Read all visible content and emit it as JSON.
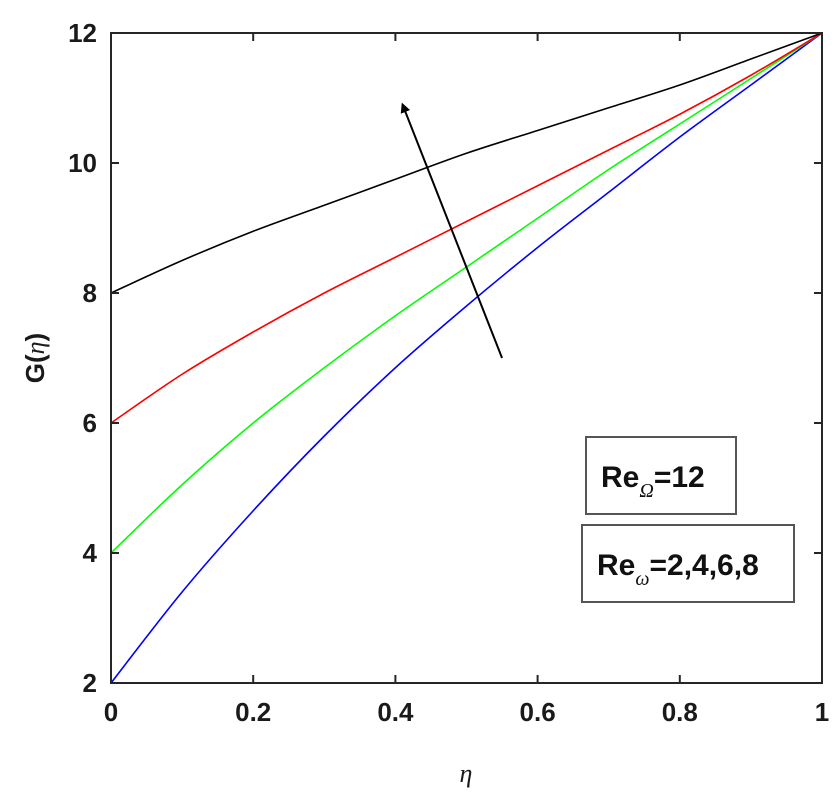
{
  "chart_data": {
    "type": "line",
    "xlabel": "η",
    "ylabel_prefix": "G(",
    "ylabel_var": "η",
    "ylabel_suffix": ")",
    "xlim": [
      0,
      1
    ],
    "ylim": [
      2,
      12
    ],
    "x_ticks": [
      0,
      0.2,
      0.4,
      0.6,
      0.8,
      1
    ],
    "x_tick_labels": [
      "0",
      "0.2",
      "0.4",
      "0.6",
      "0.8",
      "1"
    ],
    "y_ticks": [
      2,
      4,
      6,
      8,
      10,
      12
    ],
    "y_tick_labels": [
      "2",
      "4",
      "6",
      "8",
      "10",
      "12"
    ],
    "grid": false,
    "series": [
      {
        "color": "#0000ff",
        "x": [
          0,
          0.1,
          0.2,
          0.3,
          0.4,
          0.5,
          0.6,
          0.7,
          0.8,
          0.9,
          1.0
        ],
        "y": [
          2.0,
          3.4,
          4.65,
          5.8,
          6.85,
          7.8,
          8.7,
          9.55,
          10.4,
          11.2,
          12.0
        ]
      },
      {
        "color": "#00ff00",
        "x": [
          0,
          0.1,
          0.2,
          0.3,
          0.4,
          0.5,
          0.6,
          0.7,
          0.8,
          0.9,
          1.0
        ],
        "y": [
          4.0,
          5.05,
          6.0,
          6.85,
          7.65,
          8.4,
          9.15,
          9.9,
          10.6,
          11.3,
          12.0
        ]
      },
      {
        "color": "#ff0000",
        "x": [
          0,
          0.1,
          0.2,
          0.3,
          0.4,
          0.5,
          0.6,
          0.7,
          0.8,
          0.9,
          1.0
        ],
        "y": [
          6.0,
          6.75,
          7.4,
          8.0,
          8.55,
          9.1,
          9.65,
          10.2,
          10.75,
          11.35,
          12.0
        ]
      },
      {
        "color": "#000000",
        "x": [
          0,
          0.1,
          0.2,
          0.3,
          0.4,
          0.5,
          0.6,
          0.7,
          0.8,
          0.9,
          1.0
        ],
        "y": [
          8.0,
          8.5,
          8.95,
          9.35,
          9.75,
          10.15,
          10.5,
          10.85,
          11.2,
          11.6,
          12.0
        ]
      }
    ],
    "arrow": {
      "from": [
        0.55,
        7.0
      ],
      "to": [
        0.41,
        10.9
      ]
    },
    "annotations": [
      {
        "prefix": "Re",
        "sub": "Ω",
        "suffix": "=12"
      },
      {
        "prefix": "Re",
        "sub": "ω",
        "suffix": "=2,4,6,8"
      }
    ]
  }
}
